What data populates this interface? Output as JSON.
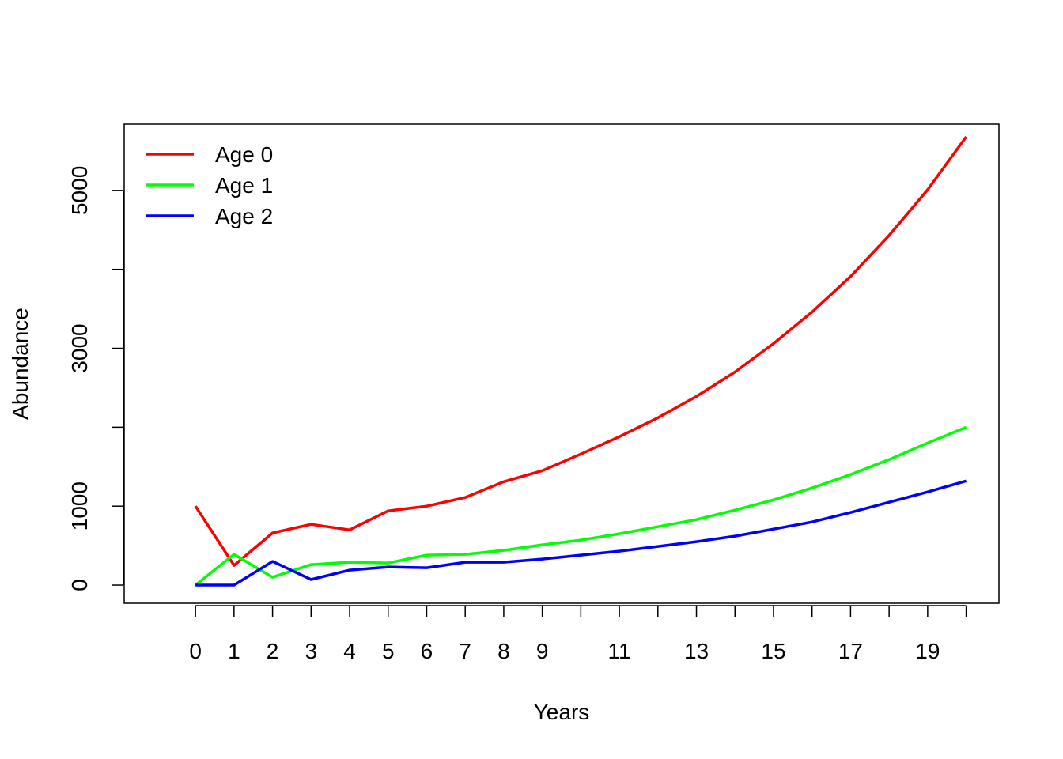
{
  "chart_data": {
    "type": "line",
    "title": "",
    "xlabel": "Years",
    "ylabel": "Abundance",
    "xlim": [
      -1.85,
      20.85
    ],
    "ylim": [
      -230,
      5840
    ],
    "x": [
      0,
      1,
      2,
      3,
      4,
      5,
      6,
      7,
      8,
      9,
      10,
      11,
      12,
      13,
      14,
      15,
      16,
      17,
      18,
      19,
      20
    ],
    "x_tick_positions": [
      0,
      1,
      2,
      3,
      4,
      5,
      6,
      7,
      8,
      9,
      10,
      11,
      12,
      13,
      14,
      15,
      16,
      17,
      18,
      19,
      20
    ],
    "x_tick_labels": [
      "0",
      "1",
      "2",
      "3",
      "4",
      "5",
      "6",
      "7",
      "8",
      "9",
      "",
      "11",
      "",
      "13",
      "",
      "15",
      "",
      "17",
      "",
      "19",
      ""
    ],
    "y_ticks": [
      0,
      1000,
      2000,
      3000,
      4000,
      5000
    ],
    "y_tick_labels": [
      "0",
      "1000",
      "",
      "3000",
      "",
      "5000"
    ],
    "grid": false,
    "legend_position": "top-left",
    "series": [
      {
        "name": "Age 0",
        "color": "#ff0000",
        "values": [
          1000,
          250,
          660,
          770,
          700,
          940,
          1000,
          1110,
          1310,
          1450,
          1660,
          1880,
          2120,
          2390,
          2700,
          3060,
          3460,
          3910,
          4430,
          5010,
          5680
        ]
      },
      {
        "name": "Age 1",
        "color": "#00ff00",
        "values": [
          0,
          390,
          100,
          260,
          290,
          280,
          380,
          390,
          440,
          510,
          570,
          650,
          740,
          830,
          950,
          1080,
          1230,
          1400,
          1590,
          1800,
          2000
        ]
      },
      {
        "name": "Age 2",
        "color": "#0000ff",
        "values": [
          0,
          0,
          300,
          70,
          190,
          230,
          220,
          290,
          290,
          330,
          380,
          430,
          490,
          550,
          620,
          710,
          800,
          920,
          1050,
          1180,
          1320
        ]
      }
    ]
  }
}
